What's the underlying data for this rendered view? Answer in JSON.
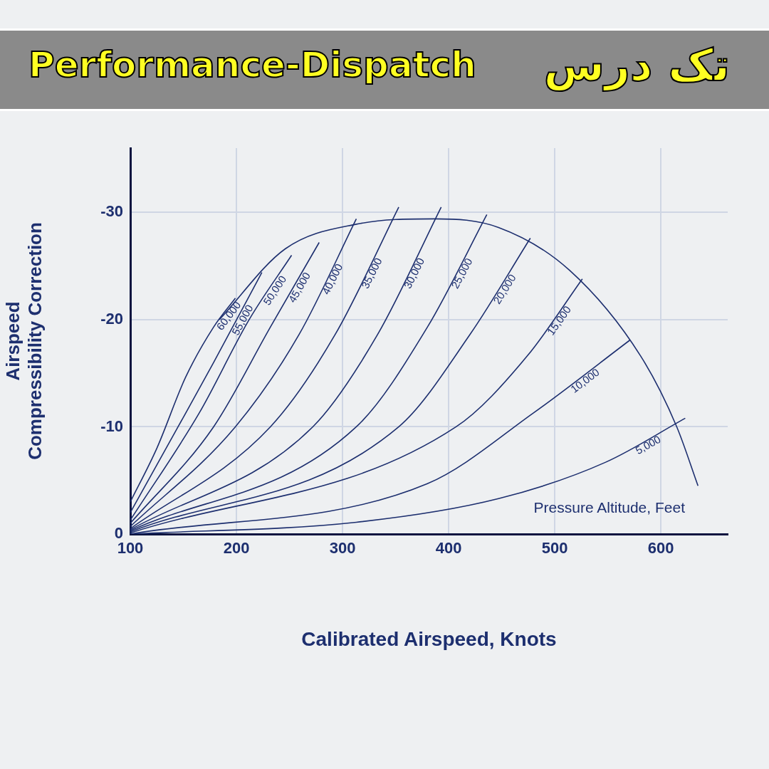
{
  "chart_data": {
    "type": "line",
    "title": "Performance-Dispatch",
    "subtitle": "تک درس",
    "xlabel": "Calibrated Airspeed, Knots",
    "ylabel": "Airspeed\nCompressibility Correction",
    "annotations": [
      "Pressure Altitude, Feet"
    ],
    "xlim": [
      100,
      663
    ],
    "ylim": [
      0,
      -36
    ],
    "xticks": [
      100,
      200,
      300,
      400,
      500,
      600
    ],
    "yticks": [
      0,
      -10,
      -20,
      -30
    ],
    "grid": true,
    "legend": false,
    "marker": "none",
    "line_style": "solid",
    "series": [
      {
        "name": "60,000",
        "color": "#1d2f6f",
        "x": [
          100,
          125,
          152,
          178.5,
          199
        ],
        "values": [
          -3,
          -8,
          -14.6,
          -19.3,
          -22
        ]
      },
      {
        "name": "55,000",
        "color": "#1d2f6f",
        "x": [
          100,
          145,
          178.5,
          224
        ],
        "values": [
          -2,
          -10,
          -16,
          -24.4
        ]
      },
      {
        "name": "50,000",
        "color": "#1d2f6f",
        "x": [
          100,
          165,
          212,
          252
        ],
        "values": [
          -1.3,
          -11.3,
          -20,
          -26
        ]
      },
      {
        "name": "45,000",
        "color": "#1d2f6f",
        "x": [
          100,
          178.5,
          232,
          278
        ],
        "values": [
          -1,
          -10,
          -19.3,
          -27.2
        ]
      },
      {
        "name": "40,000",
        "color": "#1d2f6f",
        "x": [
          100,
          199,
          259,
          313
        ],
        "values": [
          -0.7,
          -10,
          -18.6,
          -29.4
        ]
      },
      {
        "name": "35,000",
        "color": "#1d2f6f",
        "x": [
          100,
          232,
          293,
          353
        ],
        "values": [
          -0.5,
          -10,
          -18.6,
          -30.5
        ]
      },
      {
        "name": "30,000",
        "color": "#1d2f6f",
        "x": [
          100,
          272,
          333,
          393
        ],
        "values": [
          -0.4,
          -10,
          -18.6,
          -30.5
        ]
      },
      {
        "name": "25,000",
        "color": "#1d2f6f",
        "x": [
          100,
          313,
          380,
          436
        ],
        "values": [
          -0.3,
          -10,
          -19.3,
          -29.8
        ]
      },
      {
        "name": "20,000",
        "color": "#1d2f6f",
        "x": [
          100,
          353,
          420,
          477
        ],
        "values": [
          -0.2,
          -10,
          -18.6,
          -27.6
        ]
      },
      {
        "name": "15,000",
        "color": "#1d2f6f",
        "x": [
          100,
          407,
          474,
          526
        ],
        "values": [
          -0.1,
          -10,
          -16.6,
          -23.8
        ]
      },
      {
        "name": "10,000",
        "color": "#1d2f6f",
        "x": [
          100,
          380,
          480,
          571
        ],
        "values": [
          0,
          -4.7,
          -11.3,
          -18.1
        ]
      },
      {
        "name": "5,000",
        "color": "#1d2f6f",
        "x": [
          100,
          313,
          447,
          548,
          623
        ],
        "values": [
          0,
          -1.1,
          -3.3,
          -6.7,
          -10.8
        ]
      },
      {
        "color": "#1d2f6f",
        "x": [
          184,
          246,
          313,
          387,
          447,
          514,
          581,
          615,
          635
        ],
        "values": [
          -20,
          -26.6,
          -28.9,
          -29.4,
          -28.6,
          -24.6,
          -16.6,
          -10,
          -4.5
        ]
      }
    ]
  }
}
